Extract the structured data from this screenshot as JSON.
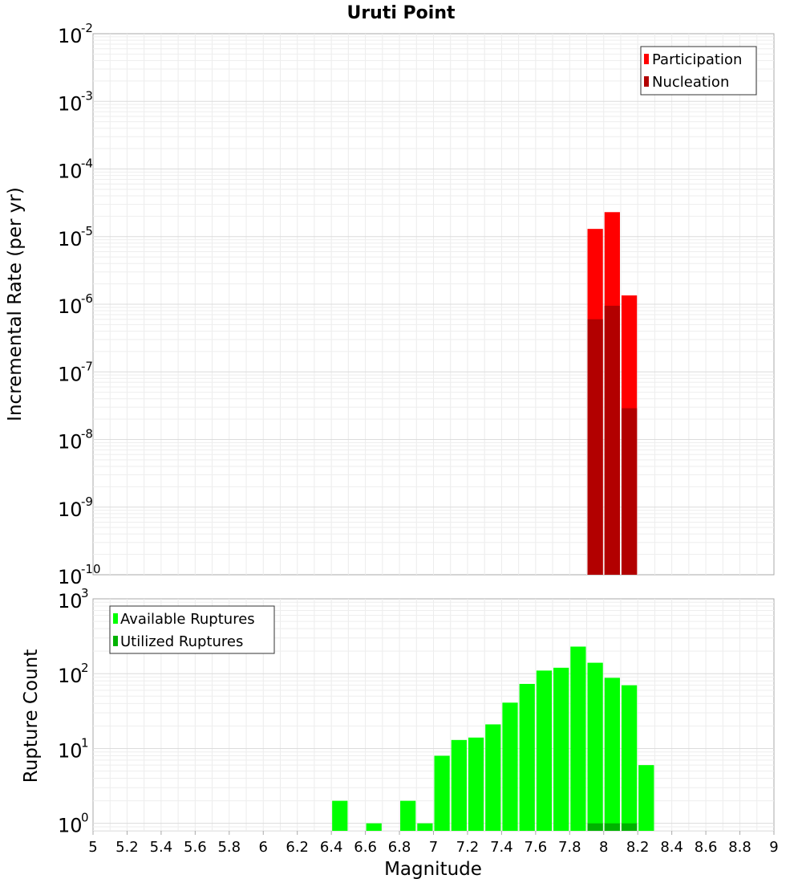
{
  "chart_data": [
    {
      "type": "bar",
      "title": "Uruti Point",
      "ylabel": "Incremental Rate (per yr)",
      "xlabel": "",
      "scale": "log",
      "xlim": [
        5,
        9
      ],
      "ylim_exp": [
        -10,
        -2
      ],
      "bin_width": 0.1,
      "y_ticks": [
        {
          "base": "10",
          "exp": "-10"
        },
        {
          "base": "10",
          "exp": "-9"
        },
        {
          "base": "10",
          "exp": "-8"
        },
        {
          "base": "10",
          "exp": "-7"
        },
        {
          "base": "10",
          "exp": "-6"
        },
        {
          "base": "10",
          "exp": "-5"
        },
        {
          "base": "10",
          "exp": "-4"
        },
        {
          "base": "10",
          "exp": "-3"
        },
        {
          "base": "10",
          "exp": "-2"
        }
      ],
      "legend": {
        "position": "top-right",
        "entries": [
          "Participation",
          "Nucleation"
        ]
      },
      "series": [
        {
          "name": "Participation",
          "color": "#ff0000",
          "x": [
            7.95,
            8.05,
            8.15
          ],
          "values": [
            1.3e-05,
            2.3e-05,
            1.35e-06
          ]
        },
        {
          "name": "Nucleation",
          "color": "#b20000",
          "x": [
            7.95,
            8.05,
            8.15
          ],
          "values": [
            6e-07,
            9.5e-07,
            2.9e-08
          ]
        }
      ]
    },
    {
      "type": "bar",
      "title": "",
      "ylabel": "Rupture Count",
      "xlabel": "Magnitude",
      "scale": "log",
      "xlim": [
        5,
        9
      ],
      "ylim_exp": [
        -0.1,
        3
      ],
      "bin_width": 0.1,
      "y_ticks": [
        {
          "base": "10",
          "exp": "0"
        },
        {
          "base": "10",
          "exp": "1"
        },
        {
          "base": "10",
          "exp": "2"
        },
        {
          "base": "10",
          "exp": "3"
        }
      ],
      "x_ticks": [
        "5",
        "5.2",
        "5.4",
        "5.6",
        "5.8",
        "6",
        "6.2",
        "6.4",
        "6.6",
        "6.8",
        "7",
        "7.2",
        "7.4",
        "7.6",
        "7.8",
        "8",
        "8.2",
        "8.4",
        "8.6",
        "8.8",
        "9"
      ],
      "legend": {
        "position": "top-left",
        "entries": [
          "Available Ruptures",
          "Utilized Ruptures"
        ]
      },
      "series": [
        {
          "name": "Available Ruptures",
          "color": "#00ff00",
          "x": [
            6.45,
            6.65,
            6.85,
            6.95,
            7.05,
            7.15,
            7.25,
            7.35,
            7.45,
            7.55,
            7.65,
            7.75,
            7.85,
            7.95,
            8.05,
            8.15,
            8.25
          ],
          "values": [
            2,
            1,
            2,
            1,
            8,
            13,
            14,
            21,
            41,
            73,
            110,
            120,
            230,
            140,
            88,
            70,
            6
          ]
        },
        {
          "name": "Utilized Ruptures",
          "color": "#00b200",
          "x": [
            7.95,
            8.05,
            8.15
          ],
          "values": [
            1,
            1,
            1
          ]
        }
      ]
    }
  ]
}
